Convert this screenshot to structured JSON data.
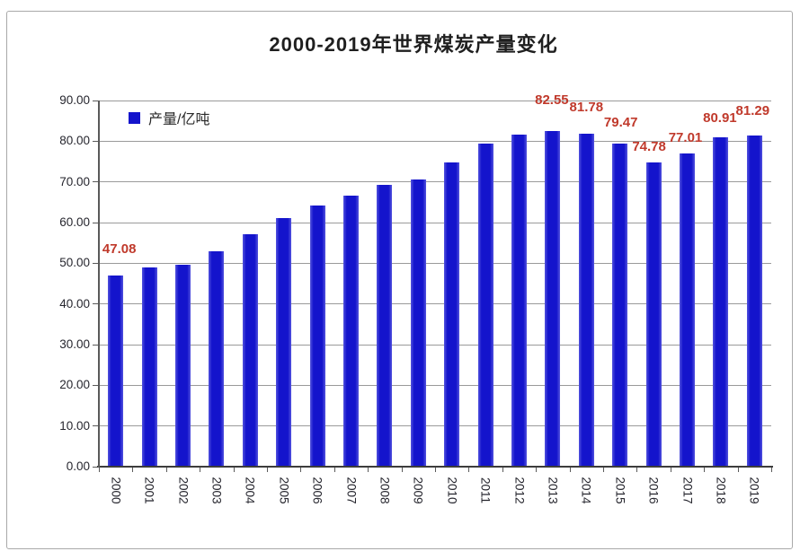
{
  "page": {
    "title": "2000-2019年世界煤炭产量变化"
  },
  "legend": {
    "label": "产量/亿吨",
    "swatch_color": "#1414cc"
  },
  "colors": {
    "bar": "#1414cc",
    "bar_edge": "#5353de",
    "value_label": "#c0392b",
    "grid": "#9a9a9a",
    "axis": "#5a5a5a",
    "text": "#26262e",
    "frame_border": "#a9a9a9"
  },
  "chart_data": {
    "type": "bar",
    "title": "2000-2019年世界煤炭产量变化",
    "legend": [
      "产量/亿吨"
    ],
    "legend_position": "top-left-inside",
    "categories": [
      "2000",
      "2001",
      "2002",
      "2003",
      "2004",
      "2005",
      "2006",
      "2007",
      "2008",
      "2009",
      "2010",
      "2011",
      "2012",
      "2013",
      "2014",
      "2015",
      "2016",
      "2017",
      "2018",
      "2019"
    ],
    "values": [
      47.08,
      49.0,
      49.6,
      53.0,
      57.1,
      61.0,
      64.1,
      66.6,
      69.3,
      70.6,
      74.7,
      79.4,
      81.7,
      82.55,
      81.78,
      79.47,
      74.78,
      77.01,
      80.91,
      81.29
    ],
    "ylim": [
      0,
      90
    ],
    "ytick_step": 10,
    "ytick_decimals": 2,
    "grid": true,
    "value_labels": [
      {
        "year": "2000",
        "text": "47.08",
        "gap": 21,
        "dx": 4
      },
      {
        "year": "2013",
        "text": "82.55",
        "gap": 26,
        "dx": -1
      },
      {
        "year": "2014",
        "text": "81.78",
        "gap": 21,
        "dx": 0
      },
      {
        "year": "2015",
        "text": "79.47",
        "gap": 15,
        "dx": 1
      },
      {
        "year": "2016",
        "text": "74.78",
        "gap": 9,
        "dx": -5
      },
      {
        "year": "2017",
        "text": "77.01",
        "gap": 9,
        "dx": -2
      },
      {
        "year": "2018",
        "text": "80.91",
        "gap": 13,
        "dx": -1
      },
      {
        "year": "2019",
        "text": "81.29",
        "gap": 19,
        "dx": -2
      }
    ]
  }
}
